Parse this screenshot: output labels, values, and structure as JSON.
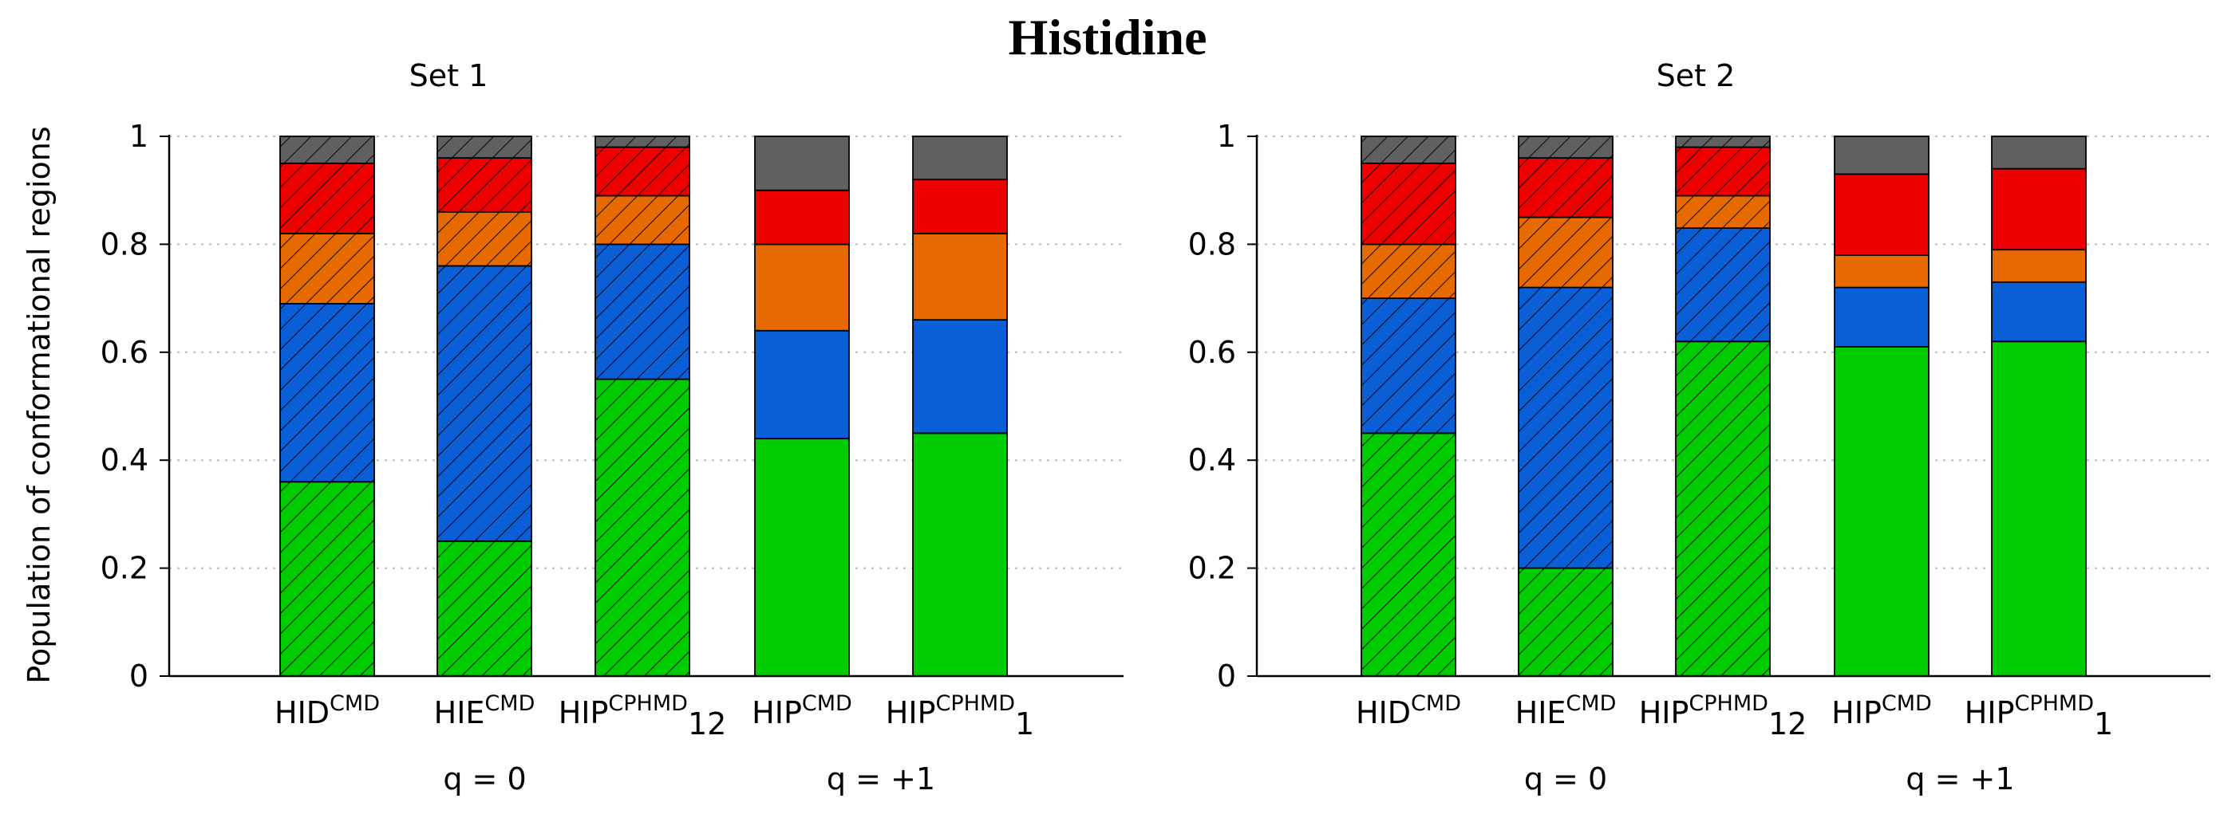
{
  "figure_title": "Histidine",
  "colors": {
    "bottom": "#00cc00",
    "blue": "#0a5fd6",
    "orange": "#e66a00",
    "red": "#ee0000",
    "gray": "#606060",
    "grid": "#bdbdbd"
  },
  "chart_data": [
    {
      "type": "bar",
      "stacked": true,
      "title": "Set 1",
      "ylabel": "Population of conformational regions",
      "ylim": [
        0,
        1
      ],
      "yticks": [
        "0",
        "0.2",
        "0.4",
        "0.6",
        "0.8",
        "1"
      ],
      "categories": [
        {
          "base": "HID",
          "sup": "CMD",
          "sub": ""
        },
        {
          "base": "HIE",
          "sup": "CMD",
          "sub": ""
        },
        {
          "base": "HIP",
          "sup": "CPHMD",
          "sub": "12"
        },
        {
          "base": "HIP",
          "sup": "CMD",
          "sub": ""
        },
        {
          "base": "HIP",
          "sup": "CPHMD",
          "sub": "1"
        }
      ],
      "hatched": [
        true,
        true,
        true,
        false,
        false
      ],
      "groups": [
        {
          "label": "q = 0",
          "span": [
            0,
            2
          ]
        },
        {
          "label": "q = +1",
          "span": [
            3,
            4
          ]
        }
      ],
      "series": [
        {
          "name": "green",
          "values": [
            0.36,
            0.25,
            0.55,
            0.44,
            0.45
          ]
        },
        {
          "name": "blue",
          "values": [
            0.33,
            0.51,
            0.25,
            0.2,
            0.21
          ]
        },
        {
          "name": "orange",
          "values": [
            0.13,
            0.1,
            0.09,
            0.16,
            0.16
          ]
        },
        {
          "name": "red",
          "values": [
            0.13,
            0.1,
            0.09,
            0.1,
            0.1
          ]
        },
        {
          "name": "gray",
          "values": [
            0.05,
            0.04,
            0.02,
            0.1,
            0.08
          ]
        }
      ]
    },
    {
      "type": "bar",
      "stacked": true,
      "title": "Set 2",
      "ylabel": "",
      "ylim": [
        0,
        1
      ],
      "yticks": [
        "0",
        "0.2",
        "0.4",
        "0.6",
        "0.8",
        "1"
      ],
      "categories": [
        {
          "base": "HID",
          "sup": "CMD",
          "sub": ""
        },
        {
          "base": "HIE",
          "sup": "CMD",
          "sub": ""
        },
        {
          "base": "HIP",
          "sup": "CPHMD",
          "sub": "12"
        },
        {
          "base": "HIP",
          "sup": "CMD",
          "sub": ""
        },
        {
          "base": "HIP",
          "sup": "CPHMD",
          "sub": "1"
        }
      ],
      "hatched": [
        true,
        true,
        true,
        false,
        false
      ],
      "groups": [
        {
          "label": "q = 0",
          "span": [
            0,
            2
          ]
        },
        {
          "label": "q = +1",
          "span": [
            3,
            4
          ]
        }
      ],
      "series": [
        {
          "name": "green",
          "values": [
            0.45,
            0.2,
            0.62,
            0.61,
            0.62
          ]
        },
        {
          "name": "blue",
          "values": [
            0.25,
            0.52,
            0.21,
            0.11,
            0.11
          ]
        },
        {
          "name": "orange",
          "values": [
            0.1,
            0.13,
            0.06,
            0.06,
            0.06
          ]
        },
        {
          "name": "red",
          "values": [
            0.15,
            0.11,
            0.09,
            0.15,
            0.15
          ]
        },
        {
          "name": "gray",
          "values": [
            0.05,
            0.04,
            0.02,
            0.07,
            0.06
          ]
        }
      ]
    }
  ]
}
